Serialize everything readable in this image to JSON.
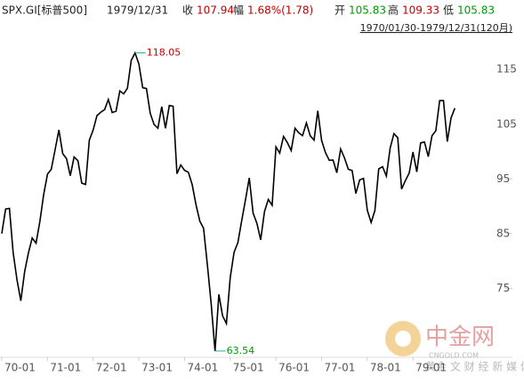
{
  "chart_data": {
    "type": "line",
    "header": {
      "symbol": "SPX.GI[标普500]",
      "date": "1979/12/31",
      "close_label": "收",
      "close": 107.94,
      "change_label": "幅",
      "change": "1.68%(1.78)",
      "open_label": "开",
      "open": 105.83,
      "high_label": "高",
      "high": 109.33,
      "low_label": "低",
      "low": 105.83
    },
    "range": "1970/01/30-1979/12/31(120月)",
    "x": [
      "70-01",
      null,
      null,
      null,
      null,
      null,
      null,
      null,
      null,
      null,
      null,
      null,
      "71-01",
      null,
      null,
      null,
      null,
      null,
      null,
      null,
      null,
      null,
      null,
      null,
      "72-01",
      null,
      null,
      null,
      null,
      null,
      null,
      null,
      null,
      null,
      null,
      null,
      "73-01",
      null,
      null,
      null,
      null,
      null,
      null,
      null,
      null,
      null,
      null,
      null,
      "74-01",
      null,
      null,
      null,
      null,
      null,
      null,
      null,
      null,
      null,
      null,
      null,
      "75-01",
      null,
      null,
      null,
      null,
      null,
      null,
      null,
      null,
      null,
      null,
      null,
      "76-01",
      null,
      null,
      null,
      null,
      null,
      null,
      null,
      null,
      null,
      null,
      null,
      "77-01",
      null,
      null,
      null,
      null,
      null,
      null,
      null,
      null,
      null,
      null,
      null,
      "78-01",
      null,
      null,
      null,
      null,
      null,
      null,
      null,
      null,
      null,
      null,
      null,
      "79-01",
      null,
      null,
      null,
      null,
      null,
      null,
      null,
      null,
      null,
      null,
      null
    ],
    "values": [
      85.02,
      89.5,
      89.63,
      81.52,
      76.55,
      72.72,
      78.05,
      81.52,
      84.21,
      83.25,
      87.2,
      92.15,
      95.88,
      96.75,
      100.31,
      103.95,
      99.63,
      98.7,
      95.58,
      99.03,
      98.34,
      94.23,
      93.99,
      102.09,
      103.94,
      106.57,
      107.2,
      107.67,
      109.53,
      107.14,
      107.39,
      111.09,
      110.55,
      111.58,
      116.67,
      118.05,
      116.03,
      111.68,
      111.52,
      106.97,
      104.95,
      104.26,
      108.22,
      104.25,
      108.43,
      108.29,
      95.96,
      97.55,
      96.57,
      96.22,
      93.98,
      90.31,
      87.28,
      86.0,
      79.31,
      72.15,
      63.54,
      73.9,
      69.97,
      68.56,
      76.98,
      81.59,
      83.36,
      87.3,
      91.15,
      95.19,
      88.75,
      86.88,
      83.87,
      89.04,
      91.24,
      90.19,
      100.86,
      99.71,
      102.77,
      101.64,
      100.18,
      104.28,
      103.44,
      102.91,
      105.24,
      102.9,
      102.1,
      107.46,
      102.03,
      99.82,
      98.42,
      98.44,
      96.12,
      100.48,
      98.85,
      96.77,
      96.53,
      92.34,
      94.83,
      95.1,
      89.25,
      87.04,
      89.21,
      96.83,
      97.24,
      95.53,
      100.68,
      103.29,
      102.54,
      93.15,
      94.7,
      96.11,
      99.93,
      96.28,
      101.59,
      101.76,
      99.08,
      102.91,
      103.81,
      109.32,
      109.32,
      101.82,
      106.16,
      107.94
    ],
    "color": "#000000",
    "up_color": "#c00000",
    "down_color": "#009900",
    "ylim": [
      61.9,
      120.4
    ],
    "yticks": [
      75,
      85,
      95,
      105,
      115
    ],
    "watermark": {
      "name": "中金网",
      "site": "CNGOLD.COM",
      "slogan": "黄金 文 财 经 新 媒 体"
    }
  }
}
